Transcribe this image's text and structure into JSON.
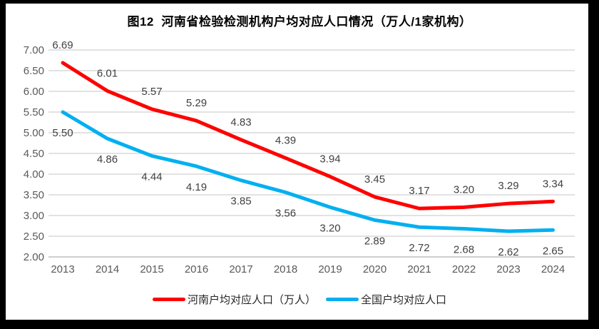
{
  "chart_data": {
    "type": "line",
    "title": "图12  河南省检验检测机构户均对应人口情况（万人/1家机构）",
    "categories": [
      "2013",
      "2014",
      "2015",
      "2016",
      "2017",
      "2018",
      "2019",
      "2020",
      "2021",
      "2022",
      "2023",
      "2024"
    ],
    "series": [
      {
        "name": "河南户均对应人口（万人）",
        "color": "#FF0000",
        "values": [
          6.69,
          6.01,
          5.57,
          5.29,
          4.83,
          4.39,
          3.94,
          3.45,
          3.17,
          3.2,
          3.29,
          3.34
        ],
        "label_position": "above"
      },
      {
        "name": "全国户均对应人口",
        "color": "#00B0F0",
        "values": [
          5.5,
          4.86,
          4.44,
          4.19,
          3.85,
          3.56,
          3.2,
          2.89,
          2.72,
          2.68,
          2.62,
          2.65
        ],
        "label_position": "below"
      }
    ],
    "y_axis": {
      "min": 2.0,
      "max": 7.0,
      "step": 0.5,
      "decimals": 2
    },
    "value_label_decimals": 2,
    "grid": true,
    "legend_position": "bottom",
    "colors": {
      "gridline": "#D9D9D9",
      "axis_line": "#BFBFBF",
      "tick_text": "#595959",
      "data_label_text": "#404040"
    }
  }
}
